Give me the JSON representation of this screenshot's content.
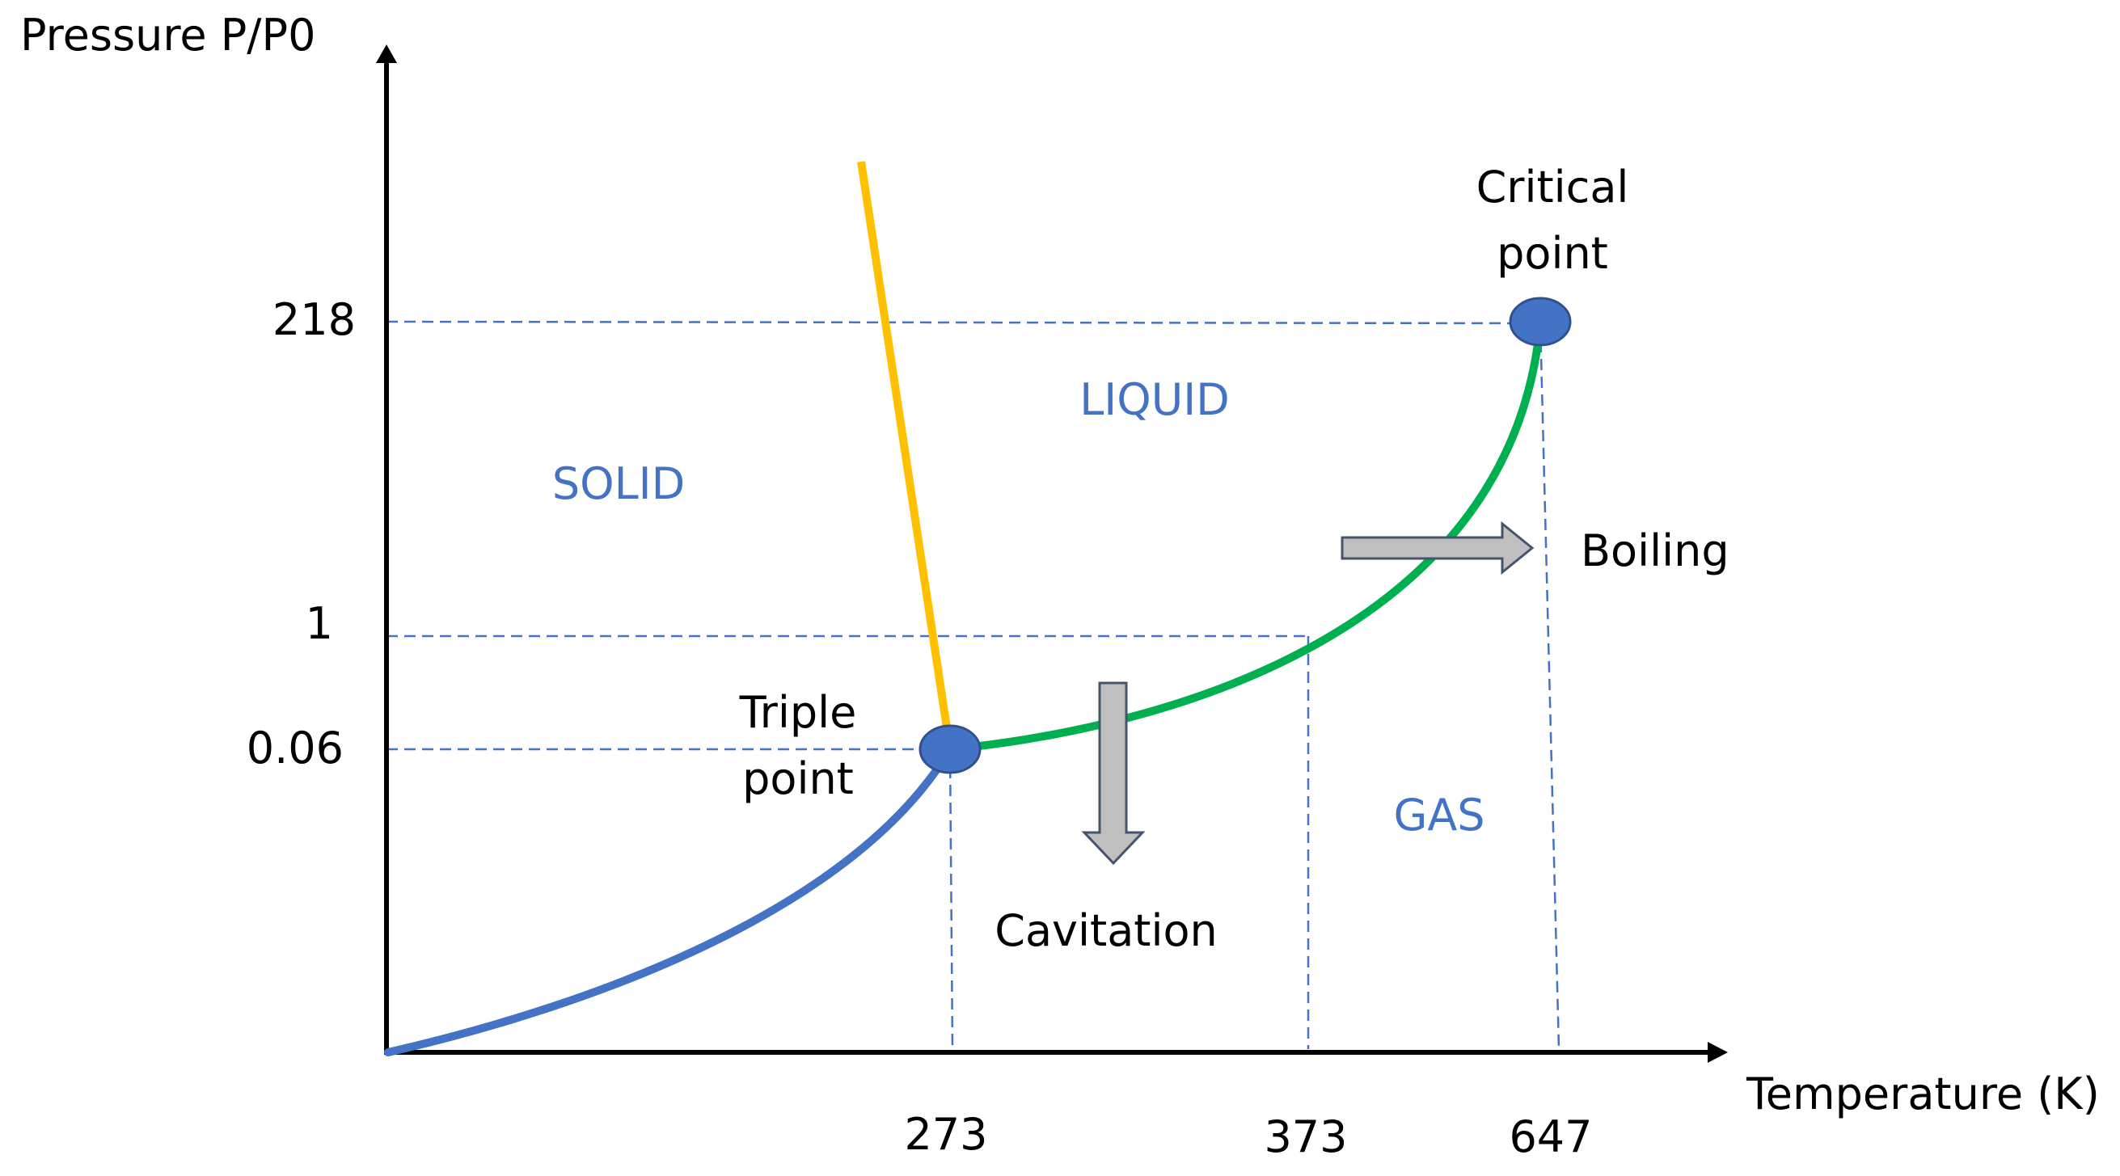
{
  "axes": {
    "y_label": "Pressure P/P0",
    "x_label": "Temperature (K)",
    "y_ticks": [
      "218",
      "1",
      "0.06"
    ],
    "x_ticks": [
      "273",
      "373",
      "647"
    ]
  },
  "regions": {
    "solid": "SOLID",
    "liquid": "LIQUID",
    "gas": "GAS"
  },
  "points": {
    "critical_line1": "Critical",
    "critical_line2": "point",
    "triple_line1": "Triple",
    "triple_line2": "point"
  },
  "processes": {
    "boiling": "Boiling",
    "cavitation": "Cavitation"
  },
  "colors": {
    "sublimation_curve": "#4472C4",
    "melting_curve": "#FFC000",
    "vaporization_curve": "#00B050",
    "point_fill": "#4472C4",
    "arrow_fill": "#BFBFBF",
    "arrow_stroke": "#44546A",
    "guide_lines": "#4472C4",
    "region_text": "#4472C4"
  }
}
